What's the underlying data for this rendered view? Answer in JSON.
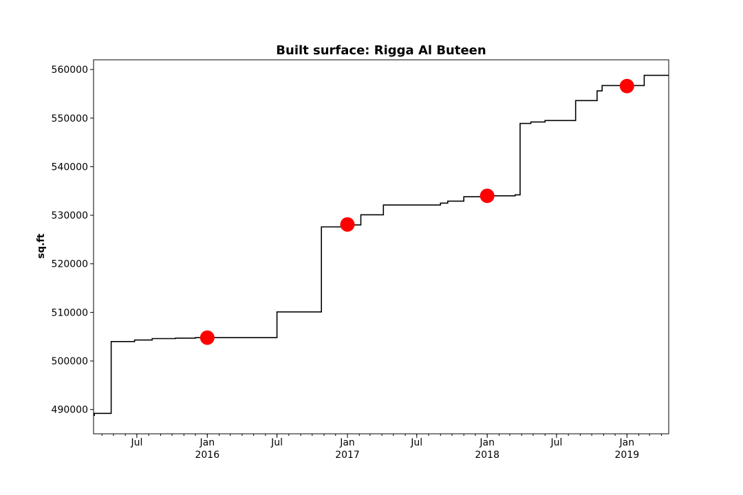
{
  "chart_data": {
    "type": "line",
    "title": "Built surface: Rigga Al Buteen",
    "xlabel": "",
    "ylabel": "sq.ft",
    "xlim": [
      "2015-03-10",
      "2019-04-20"
    ],
    "ylim": [
      485000,
      562000
    ],
    "yticks": [
      490000,
      500000,
      510000,
      520000,
      530000,
      540000,
      550000,
      560000
    ],
    "xticks": [
      {
        "date": "2015-07-01",
        "label": "Jul",
        "year": ""
      },
      {
        "date": "2016-01-01",
        "label": "Jan",
        "year": "2016"
      },
      {
        "date": "2016-07-01",
        "label": "Jul",
        "year": ""
      },
      {
        "date": "2017-01-01",
        "label": "Jan",
        "year": "2017"
      },
      {
        "date": "2017-07-01",
        "label": "Jul",
        "year": ""
      },
      {
        "date": "2018-01-01",
        "label": "Jan",
        "year": "2018"
      },
      {
        "date": "2018-07-01",
        "label": "Jul",
        "year": ""
      },
      {
        "date": "2019-01-01",
        "label": "Jan",
        "year": "2019"
      }
    ],
    "series": [
      {
        "color": "#000000",
        "step": [
          [
            "2015-03-10",
            488800
          ],
          [
            "2015-03-12",
            489200
          ],
          [
            "2015-03-25",
            489200
          ],
          [
            "2015-04-25",
            504000
          ],
          [
            "2015-06-25",
            504300
          ],
          [
            "2015-08-10",
            504600
          ],
          [
            "2015-10-10",
            504700
          ],
          [
            "2015-12-01",
            504800
          ],
          [
            "2016-07-01",
            510100
          ],
          [
            "2016-10-25",
            527600
          ],
          [
            "2016-12-15",
            528000
          ],
          [
            "2017-02-05",
            530100
          ],
          [
            "2017-04-05",
            532100
          ],
          [
            "2017-09-01",
            532500
          ],
          [
            "2017-09-20",
            532900
          ],
          [
            "2017-11-01",
            533800
          ],
          [
            "2017-12-15",
            534000
          ],
          [
            "2018-03-15",
            534200
          ],
          [
            "2018-03-28",
            548900
          ],
          [
            "2018-04-25",
            549200
          ],
          [
            "2018-06-01",
            549500
          ],
          [
            "2018-08-20",
            553600
          ],
          [
            "2018-10-15",
            555600
          ],
          [
            "2018-10-28",
            556700
          ],
          [
            "2019-02-15",
            558800
          ],
          [
            "2019-04-20",
            558800
          ]
        ]
      },
      {
        "color": "#ff0000",
        "points": [
          [
            "2016-01-01",
            504800
          ],
          [
            "2017-01-01",
            528100
          ],
          [
            "2018-01-01",
            534000
          ],
          [
            "2019-01-01",
            556600
          ]
        ]
      }
    ]
  }
}
